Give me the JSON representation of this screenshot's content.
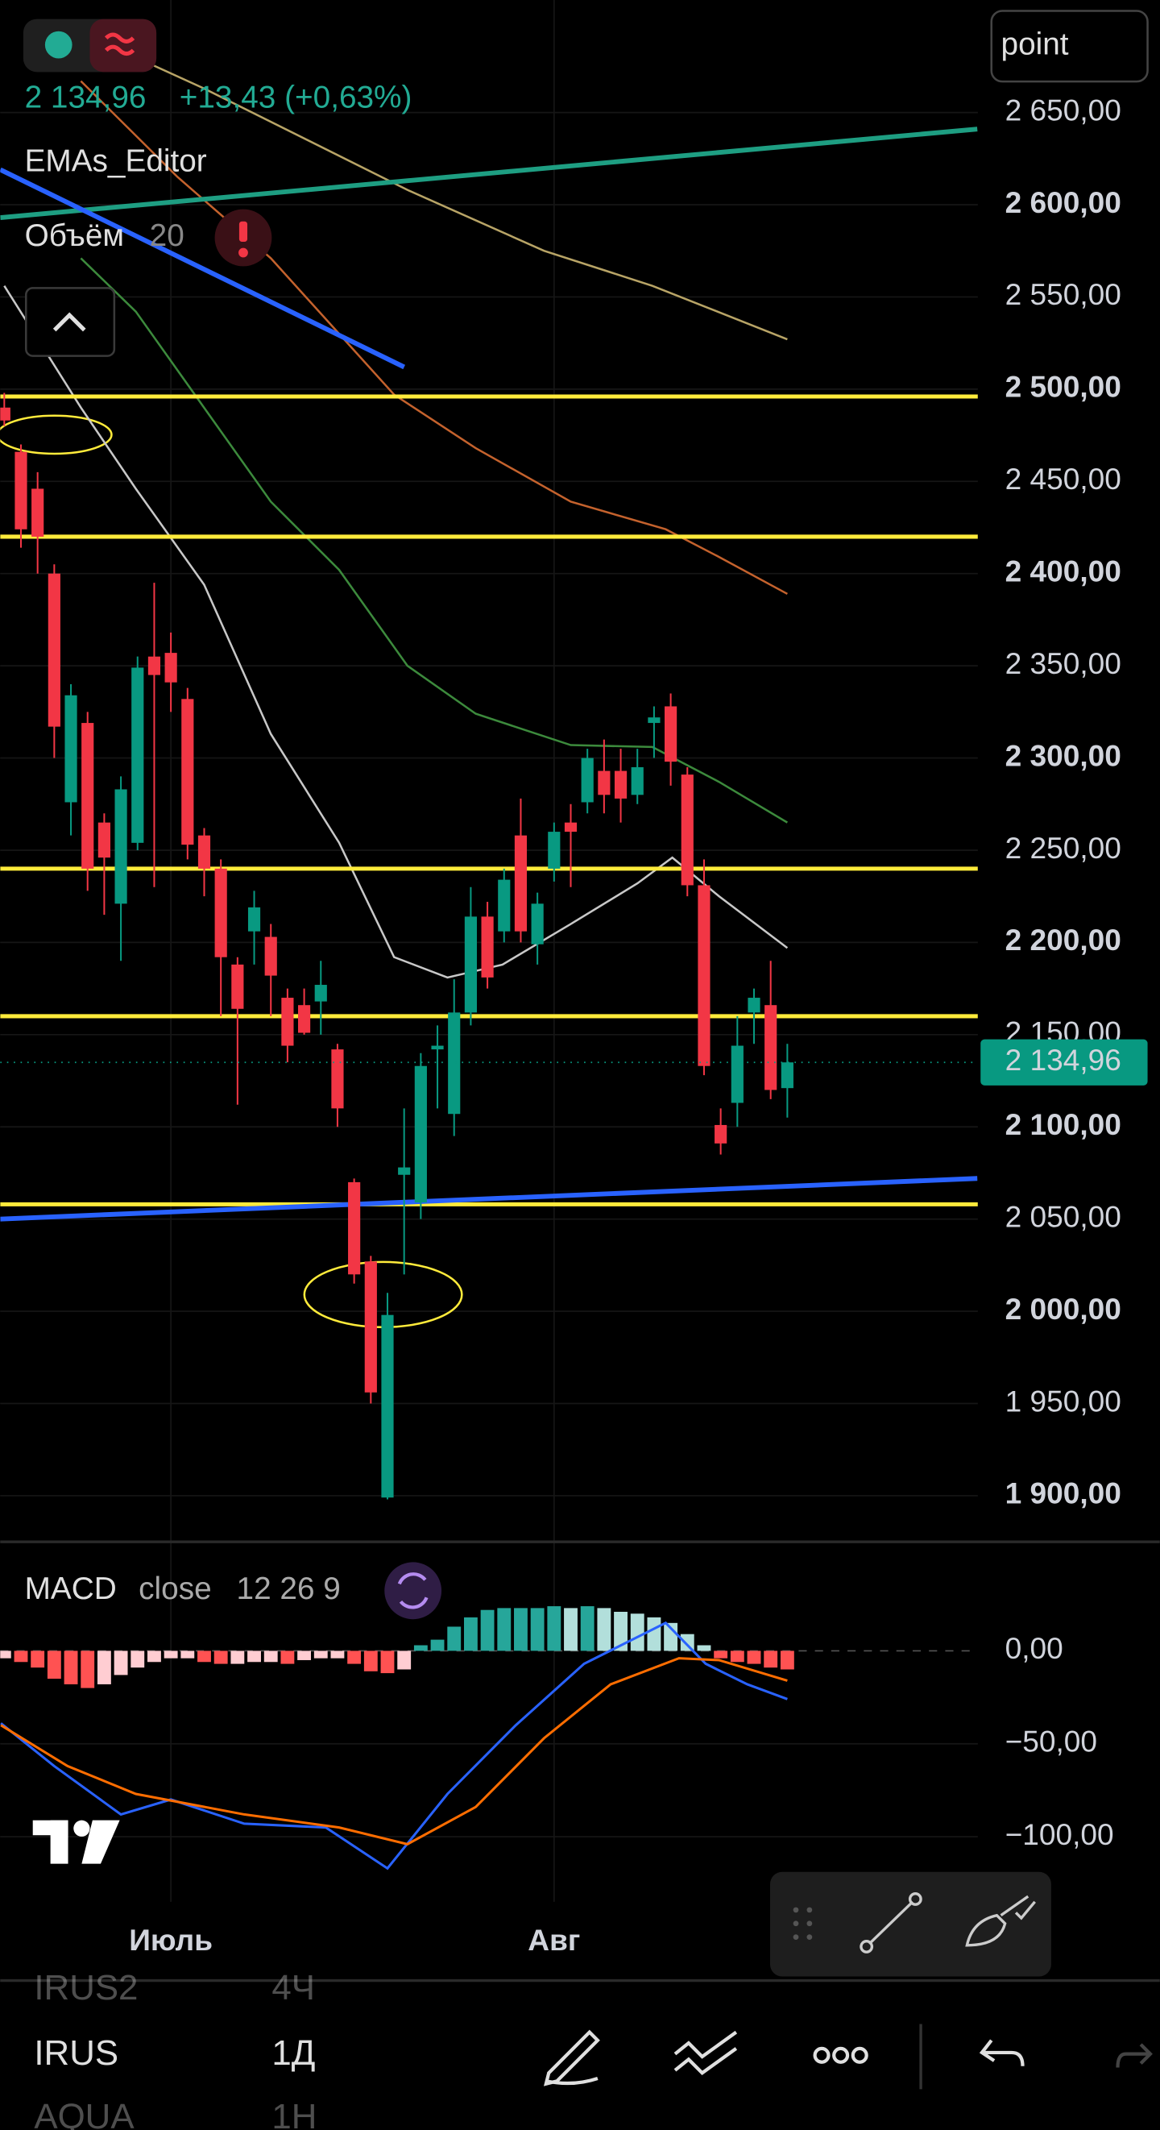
{
  "chart_data": [
    {
      "type": "candlestick",
      "categories": [
        null,
        null,
        null,
        null,
        null,
        null,
        null,
        null,
        null,
        null,
        "Июль",
        null,
        null,
        null,
        null,
        null,
        null,
        null,
        null,
        null,
        null,
        null,
        null,
        null,
        null,
        null,
        null,
        null,
        null,
        null,
        null,
        null,
        null,
        "Авг",
        null,
        null,
        null,
        null,
        null,
        null,
        null,
        null,
        null,
        null,
        null,
        null,
        null,
        null
      ],
      "open": [
        2490,
        2466,
        2446,
        2400,
        2276,
        2319,
        2265,
        2221,
        2254,
        2355,
        2357,
        2332,
        2258,
        2240,
        2188,
        2206,
        2203,
        2170,
        2166,
        2168,
        2142,
        2070,
        2027,
        1899,
        2074,
        2059,
        2142,
        2107,
        2162,
        2214,
        2206,
        2258,
        2199,
        2240,
        2265,
        2276,
        2293,
        2293,
        2280,
        2319,
        2328,
        2291,
        2231,
        2101,
        2113,
        2162,
        2166,
        2121
      ],
      "high": [
        2498,
        2470,
        2455,
        2405,
        2340,
        2325,
        2270,
        2290,
        2355,
        2395,
        2368,
        2338,
        2262,
        2245,
        2192,
        2228,
        2210,
        2175,
        2175,
        2190,
        2145,
        2072,
        2030,
        2010,
        2110,
        2140,
        2155,
        2180,
        2230,
        2222,
        2240,
        2278,
        2227,
        2265,
        2275,
        2305,
        2310,
        2305,
        2305,
        2328,
        2335,
        2295,
        2245,
        2110,
        2160,
        2175,
        2190,
        2145
      ],
      "low": [
        2480,
        2414,
        2400,
        2300,
        2258,
        2228,
        2215,
        2190,
        2250,
        2230,
        2325,
        2245,
        2225,
        2160,
        2112,
        2188,
        2160,
        2135,
        2150,
        2150,
        2100,
        2015,
        1950,
        1898,
        2020,
        2050,
        2110,
        2095,
        2155,
        2175,
        2200,
        2200,
        2188,
        2233,
        2230,
        2270,
        2270,
        2265,
        2275,
        2300,
        2285,
        2225,
        2128,
        2085,
        2100,
        2145,
        2115,
        2105
      ],
      "close": [
        2483,
        2424,
        2420,
        2317,
        2334,
        2240,
        2246,
        2283,
        2349,
        2345,
        2341,
        2253,
        2240,
        2192,
        2164,
        2219,
        2182,
        2144,
        2151,
        2177,
        2110,
        2020,
        1956,
        1998,
        2078,
        2133,
        2144,
        2162,
        2214,
        2181,
        2234,
        2206,
        2221,
        2260,
        2260,
        2300,
        2280,
        2278,
        2295,
        2322,
        2298,
        2231,
        2133,
        2091,
        2144,
        2170,
        2120,
        2134.96
      ],
      "up_color": "#089981",
      "down_color": "#f23645",
      "series": [
        {
          "color": "#b8a466",
          "x": [
            3,
            12,
            24.2,
            32.4,
            38.9,
            47
          ],
          "values": [
            2700,
            2663,
            2608,
            2575,
            2556,
            2527
          ]
        },
        {
          "color": "#c4622d",
          "x": [
            4.6,
            10.4,
            16,
            23.4,
            28.3,
            34,
            39.7,
            42.9,
            47
          ],
          "values": [
            2667,
            2615,
            2571,
            2497,
            2468,
            2439,
            2424,
            2409,
            2389
          ]
        },
        {
          "color": "#3c8a3c",
          "x": [
            4.6,
            7.9,
            16,
            20.1,
            24.2,
            28.3,
            34,
            38.9,
            42.9,
            47
          ],
          "values": [
            2571,
            2542,
            2439,
            2402,
            2350,
            2324,
            2307,
            2306,
            2287,
            2265
          ]
        },
        {
          "color": "#c8c8c8",
          "x": [
            0,
            4.6,
            7.9,
            12,
            16,
            20.1,
            23.4,
            26.6,
            29.9,
            34,
            38,
            40.1,
            42.9,
            47
          ],
          "values": [
            2556,
            2490,
            2446,
            2394,
            2313,
            2254,
            2192,
            2181,
            2188,
            2210,
            2232,
            2246,
            2225,
            2197
          ]
        }
      ],
      "hlines": [
        2496,
        2420,
        2240,
        2160,
        2058
      ],
      "hline_color": "#ffeb3b",
      "trendlines": [
        {
          "color": "#1e9e82",
          "x": [
            -0.24,
            58.4
          ],
          "values": [
            2593,
            2641
          ]
        },
        {
          "color": "#2962ff",
          "x": [
            -0.24,
            24
          ],
          "values": [
            2619,
            2512
          ]
        },
        {
          "color": "#2962ff",
          "x": [
            -0.24,
            58.4
          ],
          "values": [
            2050,
            2072
          ]
        }
      ],
      "ylim": [
        1875,
        2711
      ],
      "yticks": [
        {
          "value": 2650,
          "label": "2 650,00"
        },
        {
          "value": 2600,
          "label": "2 600,00"
        },
        {
          "value": 2550,
          "label": "2 550,00"
        },
        {
          "value": 2500,
          "label": "2 500,00"
        },
        {
          "value": 2450,
          "label": "2 450,00"
        },
        {
          "value": 2400,
          "label": "2 400,00"
        },
        {
          "value": 2350,
          "label": "2 350,00"
        },
        {
          "value": 2300,
          "label": "2 300,00"
        },
        {
          "value": 2250,
          "label": "2 250,00"
        },
        {
          "value": 2200,
          "label": "2 200,00"
        },
        {
          "value": 2150,
          "label": "2 150,00"
        },
        {
          "value": 2100,
          "label": "2 100,00"
        },
        {
          "value": 2050,
          "label": "2 050,00"
        },
        {
          "value": 2000,
          "label": "2 000,00"
        },
        {
          "value": 1950,
          "label": "1 950,00"
        },
        {
          "value": 1900,
          "label": "1 900,00"
        }
      ],
      "last_price": {
        "value": 2134.96,
        "label": "2 134,96"
      },
      "change": "+13,43 (+0,63%)",
      "indicator": "EMAs_Editor",
      "volume_label": "Объём",
      "volume_length": "20"
    },
    {
      "type": "macd",
      "title": "MACD",
      "source": "close",
      "params": "12 26 9",
      "histogram": [
        -4,
        -6,
        -9,
        -15,
        -18,
        -20,
        -18,
        -13,
        -9,
        -6,
        -4,
        -4,
        -6,
        -7,
        -7,
        -6,
        -6,
        -7,
        -5,
        -4,
        -4,
        -7,
        -11,
        -12,
        -10,
        3,
        6,
        13,
        18,
        22,
        23,
        23,
        23,
        24,
        23,
        24,
        23,
        21,
        20,
        18,
        15,
        9,
        3,
        -4,
        -6,
        -7,
        -9,
        -10
      ],
      "histogram_colors": [
        "#26a69a",
        "#b2dfdb",
        "#ffcdd2",
        "#ff5252"
      ],
      "series": [
        {
          "color": "#2962ff",
          "x": [
            -0.2,
            3,
            7,
            10,
            14.4,
            19.3,
            23,
            26.6,
            30.7,
            34.8,
            39.7,
            42.1,
            44.6,
            47
          ],
          "values": [
            -39,
            -62,
            -88,
            -80,
            -93,
            -95,
            -117,
            -77,
            -40,
            -7,
            15,
            -7,
            -18,
            -26
          ]
        },
        {
          "color": "#ff6d00",
          "x": [
            -0.2,
            3.8,
            7.9,
            14.4,
            20.1,
            24.2,
            28.3,
            32.4,
            36.4,
            40.5,
            42.9,
            47
          ],
          "values": [
            -40,
            -62,
            -77,
            -88,
            -95,
            -104,
            -84,
            -47,
            -18,
            -4,
            -5,
            -16
          ]
        }
      ],
      "ylim": [
        -135,
        55
      ],
      "yticks": [
        {
          "value": 0,
          "label": "0,00"
        },
        {
          "value": -50,
          "label": "−50,00"
        },
        {
          "value": -100,
          "label": "−100,00"
        }
      ]
    }
  ],
  "scale_mode": "point",
  "watchlist": [
    {
      "symbol": "IRUS2",
      "interval": "4Ч"
    },
    {
      "symbol": "IRUS",
      "interval": "1Д"
    },
    {
      "symbol": "AQUA",
      "interval": "1Н"
    }
  ]
}
